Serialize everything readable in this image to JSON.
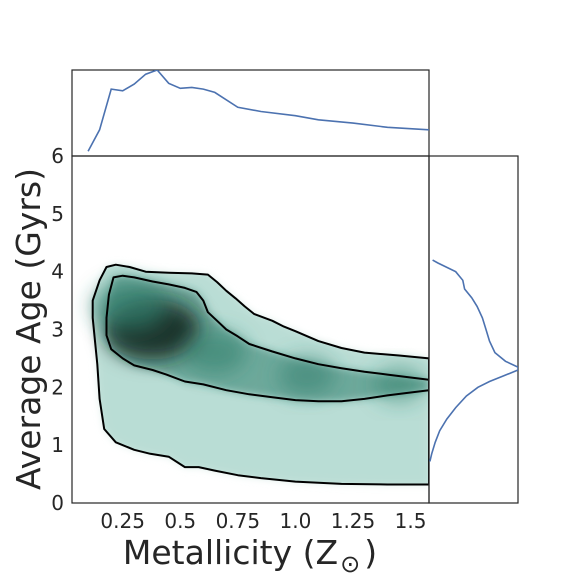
{
  "chart_data": {
    "type": "joint-density",
    "xlabel": "Metallicity (Z",
    "xlabel_symbol": "⊙",
    "xlabel_close": ")",
    "ylabel": "Average Age (Gyrs)",
    "xlim": [
      0.03,
      1.58
    ],
    "ylim": [
      0,
      6
    ],
    "x_ticks": [
      {
        "value": 0.25,
        "label": "0.25"
      },
      {
        "value": 0.5,
        "label": "0.5"
      },
      {
        "value": 0.75,
        "label": "0.75"
      },
      {
        "value": 1.0,
        "label": "1.0"
      },
      {
        "value": 1.25,
        "label": "1.25"
      },
      {
        "value": 1.5,
        "label": "1.5"
      }
    ],
    "y_ticks": [
      {
        "value": 0,
        "label": "0"
      },
      {
        "value": 1,
        "label": "1"
      },
      {
        "value": 2,
        "label": "2"
      },
      {
        "value": 3,
        "label": "3"
      },
      {
        "value": 4,
        "label": "4"
      },
      {
        "value": 5,
        "label": "5"
      },
      {
        "value": 6,
        "label": "6"
      }
    ],
    "grid": false,
    "colors": {
      "density_fill": "#2e7d6b",
      "density_dark": "#0f1f1a",
      "contour_line": "#000000",
      "marginal_line": "#4c72b0",
      "axes": "#262626"
    },
    "contours": [
      {
        "level": "outer",
        "points": [
          [
            0.17,
            1.28
          ],
          [
            0.22,
            1.05
          ],
          [
            0.3,
            0.92
          ],
          [
            0.37,
            0.85
          ],
          [
            0.45,
            0.8
          ],
          [
            0.52,
            0.62
          ],
          [
            0.58,
            0.62
          ],
          [
            0.65,
            0.56
          ],
          [
            0.75,
            0.48
          ],
          [
            0.85,
            0.43
          ],
          [
            1.0,
            0.37
          ],
          [
            1.2,
            0.33
          ],
          [
            1.4,
            0.32
          ],
          [
            1.58,
            0.32
          ],
          [
            1.58,
            2.5
          ],
          [
            1.45,
            2.55
          ],
          [
            1.3,
            2.6
          ],
          [
            1.2,
            2.68
          ],
          [
            1.1,
            2.8
          ],
          [
            1.0,
            2.97
          ],
          [
            0.95,
            3.05
          ],
          [
            0.9,
            3.15
          ],
          [
            0.82,
            3.27
          ],
          [
            0.78,
            3.4
          ],
          [
            0.74,
            3.54
          ],
          [
            0.7,
            3.67
          ],
          [
            0.66,
            3.82
          ],
          [
            0.62,
            3.95
          ],
          [
            0.55,
            3.97
          ],
          [
            0.45,
            3.98
          ],
          [
            0.35,
            4.0
          ],
          [
            0.28,
            4.08
          ],
          [
            0.22,
            4.12
          ],
          [
            0.18,
            4.08
          ],
          [
            0.15,
            3.85
          ],
          [
            0.12,
            3.5
          ],
          [
            0.12,
            3.2
          ],
          [
            0.13,
            2.8
          ],
          [
            0.14,
            2.4
          ],
          [
            0.15,
            1.8
          ]
        ]
      },
      {
        "level": "inner",
        "points": [
          [
            0.2,
            2.66
          ],
          [
            0.25,
            2.5
          ],
          [
            0.3,
            2.38
          ],
          [
            0.38,
            2.3
          ],
          [
            0.44,
            2.22
          ],
          [
            0.52,
            2.1
          ],
          [
            0.6,
            2.05
          ],
          [
            0.7,
            1.95
          ],
          [
            0.8,
            1.88
          ],
          [
            0.9,
            1.83
          ],
          [
            1.0,
            1.78
          ],
          [
            1.1,
            1.76
          ],
          [
            1.2,
            1.76
          ],
          [
            1.3,
            1.8
          ],
          [
            1.4,
            1.86
          ],
          [
            1.5,
            1.91
          ],
          [
            1.58,
            1.95
          ],
          [
            1.58,
            2.13
          ],
          [
            1.5,
            2.17
          ],
          [
            1.4,
            2.22
          ],
          [
            1.3,
            2.27
          ],
          [
            1.2,
            2.33
          ],
          [
            1.1,
            2.4
          ],
          [
            1.0,
            2.5
          ],
          [
            0.9,
            2.62
          ],
          [
            0.8,
            2.75
          ],
          [
            0.75,
            2.88
          ],
          [
            0.7,
            3.0
          ],
          [
            0.66,
            3.15
          ],
          [
            0.62,
            3.3
          ],
          [
            0.6,
            3.5
          ],
          [
            0.57,
            3.65
          ],
          [
            0.52,
            3.72
          ],
          [
            0.45,
            3.78
          ],
          [
            0.38,
            3.83
          ],
          [
            0.3,
            3.9
          ],
          [
            0.25,
            3.93
          ],
          [
            0.21,
            3.9
          ],
          [
            0.19,
            3.6
          ],
          [
            0.18,
            3.2
          ],
          [
            0.18,
            2.9
          ]
        ]
      }
    ],
    "density_cores": [
      {
        "x": 0.38,
        "y": 3.0,
        "weight": 1.0
      },
      {
        "x": 0.28,
        "y": 3.4,
        "weight": 0.65
      },
      {
        "x": 0.65,
        "y": 2.6,
        "weight": 0.45
      },
      {
        "x": 1.05,
        "y": 2.2,
        "weight": 0.35
      },
      {
        "x": 1.45,
        "y": 2.05,
        "weight": 0.25
      }
    ],
    "marginal_x": {
      "x": [
        0.1,
        0.15,
        0.2,
        0.25,
        0.3,
        0.35,
        0.4,
        0.45,
        0.5,
        0.55,
        0.6,
        0.65,
        0.75,
        0.85,
        1.0,
        1.1,
        1.25,
        1.4,
        1.58
      ],
      "density": [
        0.02,
        0.28,
        0.77,
        0.75,
        0.83,
        0.95,
        1.0,
        0.84,
        0.78,
        0.79,
        0.77,
        0.73,
        0.55,
        0.5,
        0.45,
        0.4,
        0.36,
        0.31,
        0.28
      ]
    },
    "marginal_y": {
      "y": [
        4.2,
        4.15,
        4.0,
        3.85,
        3.7,
        3.55,
        3.4,
        3.2,
        3.0,
        2.8,
        2.6,
        2.45,
        2.35,
        2.3,
        2.2,
        2.1,
        2.0,
        1.85,
        1.65,
        1.45,
        1.25,
        1.05,
        0.85,
        0.72
      ],
      "density": [
        0.04,
        0.1,
        0.3,
        0.38,
        0.4,
        0.48,
        0.54,
        0.6,
        0.64,
        0.68,
        0.74,
        0.86,
        1.0,
        1.0,
        0.84,
        0.68,
        0.55,
        0.42,
        0.3,
        0.2,
        0.12,
        0.07,
        0.03,
        0.01
      ]
    }
  }
}
